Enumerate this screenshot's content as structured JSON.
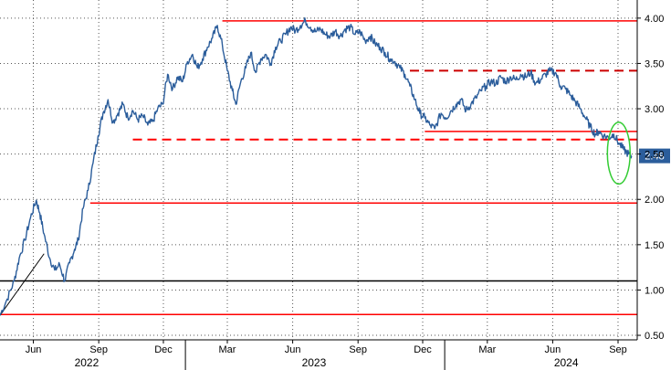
{
  "chart_data": {
    "type": "line",
    "title": "",
    "xlabel": "",
    "ylabel": "",
    "ylim": [
      0.45,
      4.2
    ],
    "xlim": [
      "2022-04-15",
      "2024-09-28"
    ],
    "grid": true,
    "y_axis_position": "right",
    "y_ticks": [
      "0.50",
      "1.00",
      "1.50",
      "2.00",
      "2.50",
      "3.00",
      "3.50",
      "4.00"
    ],
    "x_ticks": [
      {
        "label": "Jun",
        "date": "2022-06-01"
      },
      {
        "label": "Sep",
        "date": "2022-09-01"
      },
      {
        "label": "Dec",
        "date": "2022-12-01"
      },
      {
        "label": "Mar",
        "date": "2023-03-01"
      },
      {
        "label": "Jun",
        "date": "2023-06-01"
      },
      {
        "label": "Sep",
        "date": "2023-09-01"
      },
      {
        "label": "Dec",
        "date": "2023-12-01"
      },
      {
        "label": "Mar",
        "date": "2024-03-01"
      },
      {
        "label": "Jun",
        "date": "2024-06-01"
      },
      {
        "label": "Sep",
        "date": "2024-09-01"
      }
    ],
    "years": [
      {
        "label": "2022",
        "date": "2022-08-15"
      },
      {
        "label": "2023",
        "date": "2023-07-01"
      },
      {
        "label": "2024",
        "date": "2024-06-20"
      }
    ],
    "last_value": {
      "label": "2.48",
      "value": 2.48
    },
    "line_color": "#2b5d9b",
    "series": [
      {
        "x": [
          "2022-04-15",
          "2022-04-25",
          "2022-05-05",
          "2022-05-12",
          "2022-05-20",
          "2022-05-28",
          "2022-06-05",
          "2022-06-10",
          "2022-06-16",
          "2022-06-24",
          "2022-07-01",
          "2022-07-08",
          "2022-07-15",
          "2022-07-22",
          "2022-07-29",
          "2022-08-03",
          "2022-08-10",
          "2022-08-17",
          "2022-08-24",
          "2022-08-31",
          "2022-09-07",
          "2022-09-14",
          "2022-09-21",
          "2022-09-28",
          "2022-10-05",
          "2022-10-12",
          "2022-10-19",
          "2022-10-26",
          "2022-11-02",
          "2022-11-09",
          "2022-11-16",
          "2022-11-23",
          "2022-11-30",
          "2022-12-07",
          "2022-12-14",
          "2022-12-21",
          "2022-12-28",
          "2023-01-04",
          "2023-01-11",
          "2023-01-18",
          "2023-01-25",
          "2023-02-01",
          "2023-02-08",
          "2023-02-15",
          "2023-02-22",
          "2023-03-01",
          "2023-03-08",
          "2023-03-13",
          "2023-03-20",
          "2023-03-27",
          "2023-04-03",
          "2023-04-10",
          "2023-04-17",
          "2023-04-24",
          "2023-05-01",
          "2023-05-08",
          "2023-05-15",
          "2023-05-22",
          "2023-05-29",
          "2023-06-05",
          "2023-06-12",
          "2023-06-19",
          "2023-06-26",
          "2023-07-03",
          "2023-07-10",
          "2023-07-17",
          "2023-07-24",
          "2023-07-31",
          "2023-08-07",
          "2023-08-14",
          "2023-08-21",
          "2023-08-28",
          "2023-09-04",
          "2023-09-11",
          "2023-09-18",
          "2023-09-25",
          "2023-10-02",
          "2023-10-09",
          "2023-10-16",
          "2023-10-23",
          "2023-10-30",
          "2023-11-06",
          "2023-11-13",
          "2023-11-20",
          "2023-11-27",
          "2023-12-04",
          "2023-12-11",
          "2023-12-18",
          "2023-12-27",
          "2024-01-03",
          "2024-01-10",
          "2024-01-17",
          "2024-01-24",
          "2024-01-31",
          "2024-02-07",
          "2024-02-14",
          "2024-02-21",
          "2024-02-28",
          "2024-03-06",
          "2024-03-13",
          "2024-03-20",
          "2024-03-27",
          "2024-04-03",
          "2024-04-10",
          "2024-04-17",
          "2024-04-24",
          "2024-05-01",
          "2024-05-08",
          "2024-05-15",
          "2024-05-22",
          "2024-05-29",
          "2024-06-05",
          "2024-06-12",
          "2024-06-19",
          "2024-06-26",
          "2024-07-03",
          "2024-07-10",
          "2024-07-17",
          "2024-07-24",
          "2024-07-31",
          "2024-08-05",
          "2024-08-12",
          "2024-08-19",
          "2024-08-26",
          "2024-09-02",
          "2024-09-09",
          "2024-09-16",
          "2024-09-20"
        ],
        "values": [
          0.72,
          0.9,
          1.1,
          1.35,
          1.55,
          1.8,
          1.99,
          1.85,
          1.62,
          1.35,
          1.22,
          1.28,
          1.1,
          1.3,
          1.45,
          1.55,
          1.9,
          2.1,
          2.4,
          2.7,
          2.95,
          3.1,
          2.85,
          2.95,
          3.05,
          2.9,
          2.98,
          2.88,
          2.92,
          2.82,
          2.86,
          3.0,
          3.05,
          3.38,
          3.22,
          3.35,
          3.3,
          3.52,
          3.6,
          3.45,
          3.55,
          3.68,
          3.78,
          3.92,
          3.7,
          3.42,
          3.2,
          3.05,
          3.3,
          3.45,
          3.62,
          3.4,
          3.55,
          3.6,
          3.5,
          3.68,
          3.75,
          3.82,
          3.9,
          3.86,
          3.92,
          3.97,
          3.9,
          3.85,
          3.88,
          3.82,
          3.8,
          3.86,
          3.8,
          3.88,
          3.9,
          3.82,
          3.85,
          3.75,
          3.8,
          3.72,
          3.68,
          3.62,
          3.55,
          3.52,
          3.45,
          3.38,
          3.25,
          3.1,
          2.95,
          2.9,
          2.82,
          2.78,
          2.95,
          2.9,
          2.98,
          3.05,
          3.1,
          2.98,
          3.05,
          3.12,
          3.2,
          3.25,
          3.3,
          3.28,
          3.35,
          3.3,
          3.35,
          3.32,
          3.38,
          3.35,
          3.4,
          3.28,
          3.32,
          3.38,
          3.42,
          3.4,
          3.25,
          3.22,
          3.15,
          3.08,
          3.0,
          2.9,
          2.8,
          2.72,
          2.75,
          2.7,
          2.68,
          2.72,
          2.62,
          2.55,
          2.5,
          2.48
        ]
      }
    ],
    "reference_lines": [
      {
        "value": 3.97,
        "from": "2023-02-22",
        "color": "#ff0000",
        "dash": false
      },
      {
        "value": 3.42,
        "from": "2023-11-13",
        "color": "#cc0000",
        "dash": true
      },
      {
        "value": 2.75,
        "from": "2023-12-04",
        "color": "#ff0000",
        "dash": false
      },
      {
        "value": 2.66,
        "from": "2022-10-19",
        "color": "#ff0000",
        "dash": true
      },
      {
        "value": 1.96,
        "from": "2022-08-20",
        "color": "#ff0000",
        "dash": false
      },
      {
        "value": 1.1,
        "from": "2022-04-15",
        "color": "#000000",
        "dash": false
      },
      {
        "value": 0.73,
        "from": "2022-04-15",
        "color": "#ff0000",
        "dash": false
      }
    ],
    "trend_line": {
      "from": {
        "date": "2022-04-15",
        "value": 0.72
      },
      "to": {
        "date": "2022-06-16",
        "value": 1.4
      },
      "color": "#000000"
    },
    "ellipse": {
      "center_date": "2024-09-02",
      "center_value": 2.48,
      "date_half_width_days": 16,
      "value_half_height": 0.34,
      "color": "#33cc33"
    }
  }
}
